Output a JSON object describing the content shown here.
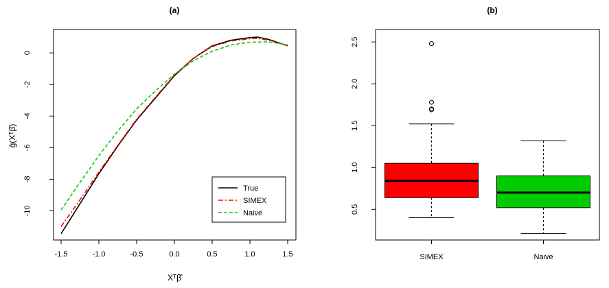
{
  "chart_data": [
    {
      "type": "line",
      "title": "(a)",
      "xlabel": "Xᵀβ̂",
      "ylabel": "ĝ(Xᵀβ̂)",
      "xlim": [
        -1.5,
        1.5
      ],
      "ylim": [
        -11.5,
        1.0
      ],
      "x_ticks": [
        "-1.5",
        "-1.0",
        "-0.5",
        "0.0",
        "0.5",
        "1.0",
        "1.5"
      ],
      "y_ticks": [
        "-10",
        "-8",
        "-6",
        "-4",
        "-2",
        "0"
      ],
      "legend_position": "bottom-right",
      "series": [
        {
          "name": "True",
          "color": "#000000",
          "dash": "solid",
          "x": [
            -1.5,
            -1.25,
            -1.0,
            -0.75,
            -0.5,
            -0.25,
            0.0,
            0.25,
            0.5,
            0.75,
            1.0,
            1.1,
            1.25,
            1.5
          ],
          "y": [
            -11.45,
            -9.55,
            -7.65,
            -5.9,
            -4.25,
            -2.85,
            -1.45,
            -0.35,
            0.45,
            0.8,
            0.97,
            1.0,
            0.85,
            0.45
          ]
        },
        {
          "name": "SIMEX",
          "color": "#ff0000",
          "dash": "dotdash",
          "x": [
            -1.5,
            -1.25,
            -1.0,
            -0.75,
            -0.5,
            -0.25,
            0.0,
            0.25,
            0.5,
            0.75,
            1.0,
            1.1,
            1.25,
            1.5
          ],
          "y": [
            -11.0,
            -9.3,
            -7.55,
            -5.85,
            -4.2,
            -2.8,
            -1.4,
            -0.35,
            0.4,
            0.75,
            0.9,
            0.92,
            0.8,
            0.45
          ]
        },
        {
          "name": "Naive",
          "color": "#00cc00",
          "dash": "dashed",
          "x": [
            -1.5,
            -1.25,
            -1.0,
            -0.75,
            -0.5,
            -0.25,
            0.0,
            0.25,
            0.5,
            0.75,
            1.0,
            1.25,
            1.5
          ],
          "y": [
            -9.95,
            -8.2,
            -6.5,
            -4.95,
            -3.55,
            -2.4,
            -1.35,
            -0.5,
            0.1,
            0.5,
            0.68,
            0.7,
            0.5
          ]
        }
      ]
    },
    {
      "type": "boxplot",
      "title": "(b)",
      "categories": [
        "SIMEX",
        "Naive"
      ],
      "ylim": [
        0.15,
        2.6
      ],
      "y_ticks": [
        "0.5",
        "1.0",
        "1.5",
        "2.0",
        "2.5"
      ],
      "boxes": [
        {
          "name": "SIMEX",
          "color": "#ff0000",
          "whisker_low": 0.4,
          "q1": 0.64,
          "median": 0.84,
          "q3": 1.05,
          "whisker_high": 1.52,
          "outliers": [
            1.69,
            1.7,
            1.78,
            2.48
          ]
        },
        {
          "name": "Naive",
          "color": "#00cc00",
          "whisker_low": 0.21,
          "q1": 0.52,
          "median": 0.7,
          "q3": 0.9,
          "whisker_high": 1.32,
          "outliers": []
        }
      ]
    }
  ]
}
